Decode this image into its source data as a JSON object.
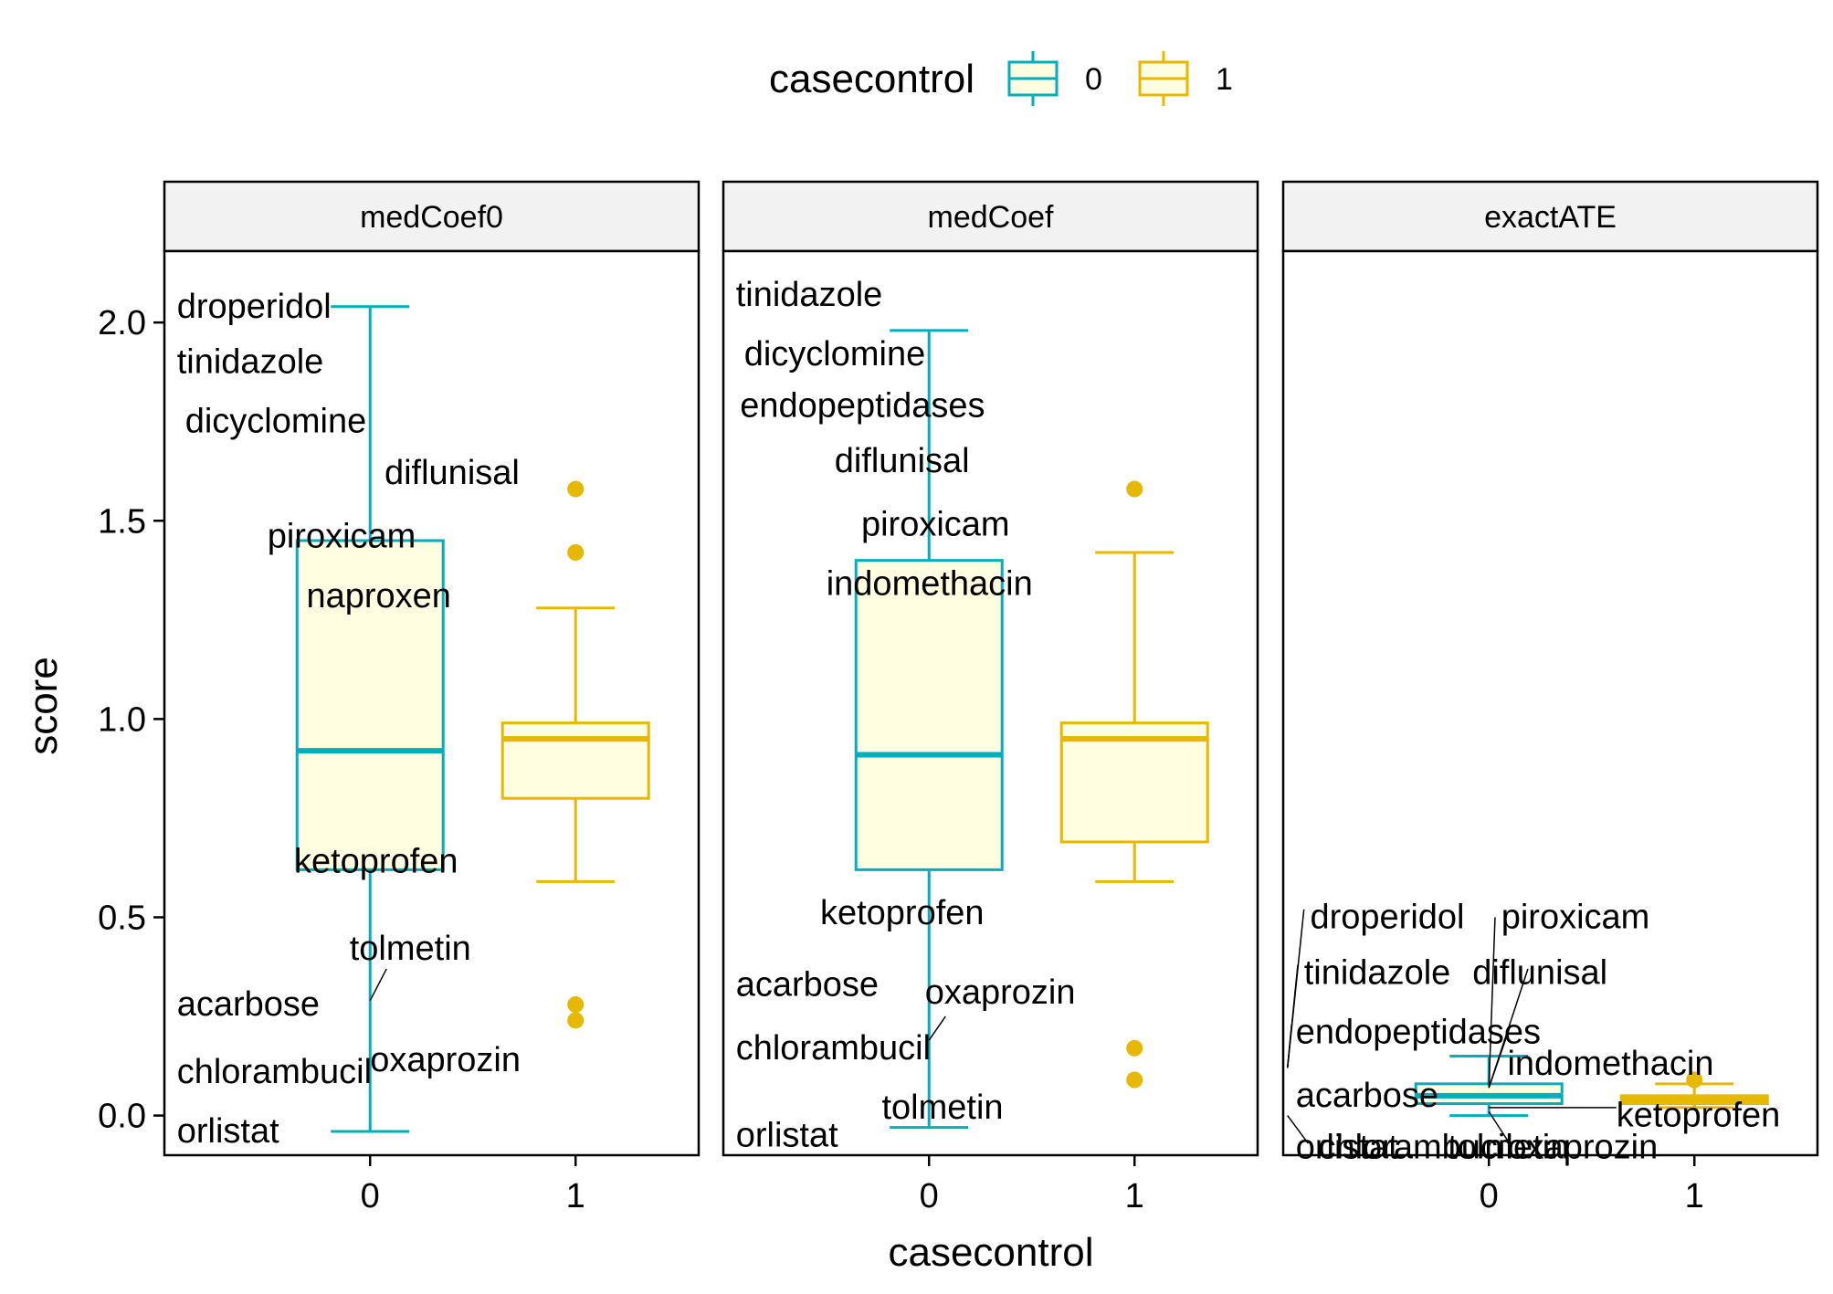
{
  "chart_data": {
    "type": "boxplot",
    "title": "",
    "xlabel": "casecontrol",
    "ylabel": "score",
    "ylim": [
      -0.1,
      2.18
    ],
    "yticks": [
      0.0,
      0.5,
      1.0,
      1.5,
      2.0
    ],
    "ytick_labels": [
      "0.0",
      "0.5",
      "1.0",
      "1.5",
      "2.0"
    ],
    "categories": [
      "0",
      "1"
    ],
    "legend": {
      "title": "casecontrol",
      "position": "top",
      "entries": [
        {
          "label": "0",
          "color": "#00AFBB"
        },
        {
          "label": "1",
          "color": "#E7B800"
        }
      ]
    },
    "box_fill": "#FFFEE0",
    "facets": [
      {
        "name": "medCoef0",
        "boxes": [
          {
            "group": "0",
            "min": -0.04,
            "q1": 0.62,
            "median": 0.92,
            "q3": 1.45,
            "max": 2.04,
            "outliers": []
          },
          {
            "group": "1",
            "min": 0.59,
            "q1": 0.8,
            "median": 0.95,
            "q3": 0.99,
            "max": 1.28,
            "outliers": [
              1.58,
              1.42,
              0.28,
              0.24
            ]
          }
        ],
        "annotations": [
          {
            "text": "droperidol",
            "x": -0.94,
            "y": 2.04
          },
          {
            "text": "tinidazole",
            "x": -0.94,
            "y": 1.9
          },
          {
            "text": "dicyclomine",
            "x": -0.9,
            "y": 1.75
          },
          {
            "text": "diflunisal",
            "x": 0.07,
            "y": 1.62
          },
          {
            "text": "piroxicam",
            "x": -0.5,
            "y": 1.46
          },
          {
            "text": "naproxen",
            "x": -0.31,
            "y": 1.31
          },
          {
            "text": "ketoprofen",
            "x": -0.37,
            "y": 0.64
          },
          {
            "text": "tolmetin",
            "x": -0.1,
            "y": 0.42
          },
          {
            "text": "acarbose",
            "x": -0.94,
            "y": 0.28
          },
          {
            "text": "chlorambucil",
            "x": -0.94,
            "y": 0.11
          },
          {
            "text": "oxaprozin",
            "x": 0.0,
            "y": 0.14
          },
          {
            "text": "orlistat",
            "x": -0.94,
            "y": -0.04
          }
        ],
        "leader_lines": [
          {
            "x1": 0.0,
            "y1": 0.29,
            "x2": 0.08,
            "y2": 0.37
          }
        ]
      },
      {
        "name": "medCoef",
        "boxes": [
          {
            "group": "0",
            "min": -0.03,
            "q1": 0.62,
            "median": 0.91,
            "q3": 1.4,
            "max": 1.98,
            "outliers": []
          },
          {
            "group": "1",
            "min": 0.59,
            "q1": 0.69,
            "median": 0.95,
            "q3": 0.99,
            "max": 1.42,
            "outliers": [
              1.58,
              0.17,
              0.09
            ]
          }
        ],
        "annotations": [
          {
            "text": "tinidazole",
            "x": -0.94,
            "y": 2.07
          },
          {
            "text": "dicyclomine",
            "x": -0.9,
            "y": 1.92
          },
          {
            "text": "endopeptidases",
            "x": -0.92,
            "y": 1.79
          },
          {
            "text": "diflunisal",
            "x": -0.46,
            "y": 1.65
          },
          {
            "text": "piroxicam",
            "x": -0.33,
            "y": 1.49
          },
          {
            "text": "indomethacin",
            "x": -0.5,
            "y": 1.34
          },
          {
            "text": "ketoprofen",
            "x": -0.53,
            "y": 0.51
          },
          {
            "text": "acarbose",
            "x": -0.94,
            "y": 0.33
          },
          {
            "text": "oxaprozin",
            "x": -0.02,
            "y": 0.31
          },
          {
            "text": "chlorambucil",
            "x": -0.94,
            "y": 0.17
          },
          {
            "text": "tolmetin",
            "x": -0.23,
            "y": 0.02
          },
          {
            "text": "orlistat",
            "x": -0.94,
            "y": -0.05
          }
        ],
        "leader_lines": [
          {
            "x1": 0.0,
            "y1": 0.19,
            "x2": 0.08,
            "y2": 0.25
          }
        ]
      },
      {
        "name": "exactATE",
        "boxes": [
          {
            "group": "0",
            "min": 0.0,
            "q1": 0.03,
            "median": 0.05,
            "q3": 0.08,
            "max": 0.15,
            "outliers": []
          },
          {
            "group": "1",
            "min": 0.02,
            "q1": 0.03,
            "median": 0.04,
            "q3": 0.05,
            "max": 0.08,
            "outliers": [
              0.09
            ]
          }
        ],
        "annotations": [
          {
            "text": "droperidol",
            "x": -0.87,
            "y": 0.5
          },
          {
            "text": "piroxicam",
            "x": 0.06,
            "y": 0.5
          },
          {
            "text": "tinidazole",
            "x": -0.9,
            "y": 0.36
          },
          {
            "text": "diflunisal",
            "x": -0.08,
            "y": 0.36
          },
          {
            "text": "endopeptidases",
            "x": -0.94,
            "y": 0.21
          },
          {
            "text": "indomethacin",
            "x": 0.09,
            "y": 0.13
          },
          {
            "text": "acarbose",
            "x": -0.94,
            "y": 0.05
          },
          {
            "text": "ketoprofen",
            "x": 0.62,
            "y": 0.0
          },
          {
            "text": "orlistat",
            "x": -0.94,
            "y": -0.08
          },
          {
            "text": "chlorambucil",
            "x": -0.83,
            "y": -0.08
          },
          {
            "text": "tolmetin",
            "x": -0.2,
            "y": -0.08
          },
          {
            "text": "oxaprozin",
            "x": 0.09,
            "y": -0.08
          }
        ],
        "leader_lines": [
          {
            "x1": -0.98,
            "y1": 0.12,
            "x2": -0.9,
            "y2": 0.52
          },
          {
            "x1": -0.98,
            "y1": 0.12,
            "x2": -0.93,
            "y2": 0.38
          },
          {
            "x1": -0.98,
            "y1": 0.12,
            "x2": -0.96,
            "y2": 0.23
          },
          {
            "x1": 0.03,
            "y1": 0.5,
            "x2": 0.0,
            "y2": 0.07
          },
          {
            "x1": 0.19,
            "y1": 0.37,
            "x2": 0.0,
            "y2": 0.07
          },
          {
            "x1": 0.1,
            "y1": 0.22,
            "x2": 0.0,
            "y2": 0.07
          },
          {
            "x1": 0.0,
            "y1": 0.02,
            "x2": 0.62,
            "y2": 0.02
          },
          {
            "x1": -0.98,
            "y1": 0.0,
            "x2": -0.88,
            "y2": -0.07
          },
          {
            "x1": 0.0,
            "y1": 0.01,
            "x2": 0.1,
            "y2": -0.07
          }
        ]
      }
    ]
  }
}
